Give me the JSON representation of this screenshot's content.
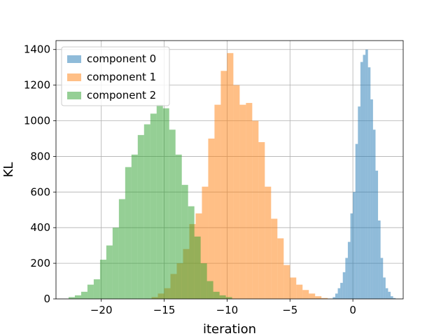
{
  "chart_data": {
    "type": "histogram",
    "title": "",
    "xlabel": "iteration",
    "ylabel": "KL",
    "xlim": [
      -23.6,
      4.0
    ],
    "ylim": [
      0,
      1450
    ],
    "xticks": [
      -20,
      -15,
      -10,
      -5,
      0
    ],
    "xtick_labels": [
      "−20",
      "−15",
      "−10",
      "−5",
      "0"
    ],
    "yticks": [
      0,
      200,
      400,
      600,
      800,
      1000,
      1200,
      1400
    ],
    "ytick_labels": [
      "0",
      "200",
      "400",
      "600",
      "800",
      "1000",
      "1200",
      "1400"
    ],
    "grid": true,
    "legend_position": "top-left",
    "opacity": 0.5,
    "series": [
      {
        "name": "component 0",
        "color": "#1f77b4",
        "bin_start": -1.6,
        "bin_width": 0.2,
        "counts": [
          10,
          30,
          60,
          90,
          150,
          230,
          320,
          480,
          600,
          870,
          1080,
          1330,
          1370,
          1400,
          1300,
          1120,
          950,
          720,
          440,
          230,
          120,
          60,
          40,
          15,
          5
        ]
      },
      {
        "name": "component 1",
        "color": "#ff7f0e",
        "bin_start": -16.0,
        "bin_width": 0.5,
        "counts": [
          10,
          30,
          60,
          140,
          200,
          280,
          420,
          480,
          630,
          900,
          1090,
          1280,
          1380,
          1200,
          1090,
          1100,
          1000,
          880,
          630,
          450,
          340,
          190,
          120,
          80,
          50,
          30,
          15,
          5
        ]
      },
      {
        "name": "component 2",
        "color": "#2ca02c",
        "bin_start": -22.6,
        "bin_width": 0.5,
        "counts": [
          10,
          20,
          40,
          80,
          110,
          220,
          300,
          400,
          560,
          740,
          810,
          920,
          980,
          1040,
          1090,
          1070,
          950,
          810,
          640,
          520,
          350,
          200,
          100,
          40,
          20,
          10
        ]
      }
    ]
  }
}
